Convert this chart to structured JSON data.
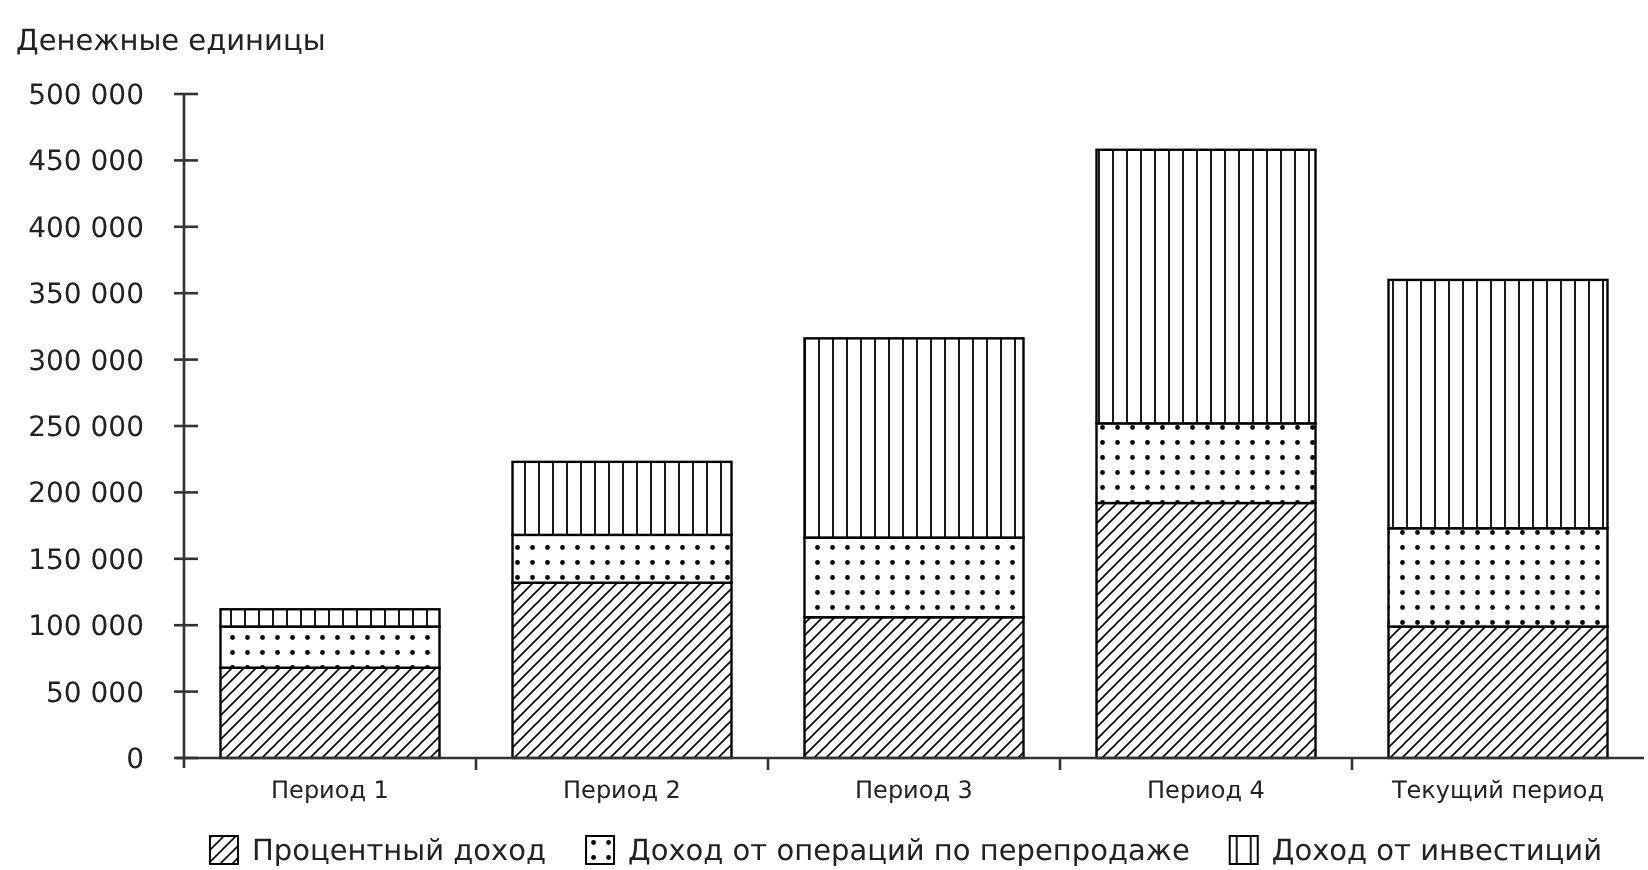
{
  "chart_data": {
    "type": "bar",
    "stacked": true,
    "ylabel": "Денежные единицы",
    "categories": [
      "Период 1",
      "Период 2",
      "Период 3",
      "Период 4",
      "Текущий период"
    ],
    "series": [
      {
        "name": "Процентный доход",
        "color": "#000000",
        "values": [
          68000,
          132000,
          106000,
          192000,
          99000
        ]
      },
      {
        "name": "Доход от операций по перепродаже",
        "color": "#000000",
        "values": [
          31000,
          36000,
          60000,
          60000,
          74000
        ]
      },
      {
        "name": "Доход от инвестиций",
        "color": "#000000",
        "values": [
          13000,
          55000,
          150000,
          206000,
          187000
        ]
      }
    ],
    "ylim": [
      0,
      500000
    ],
    "yticks": [
      0,
      {
        "value": 50000,
        "label": "50 000"
      },
      {
        "value": 100000,
        "label": "100 000"
      },
      {
        "value": 150000,
        "label": "150 000"
      },
      {
        "value": 200000,
        "label": "200 000"
      },
      {
        "value": 250000,
        "label": "250 000"
      },
      {
        "value": 300000,
        "label": "300 000"
      },
      {
        "value": 350000,
        "label": "350 000"
      },
      {
        "value": 400000,
        "label": "400 000"
      },
      {
        "value": 450000,
        "label": "450 000"
      },
      {
        "value": 500000,
        "label": "500 000"
      }
    ],
    "grid": false,
    "legend": "bottom"
  }
}
